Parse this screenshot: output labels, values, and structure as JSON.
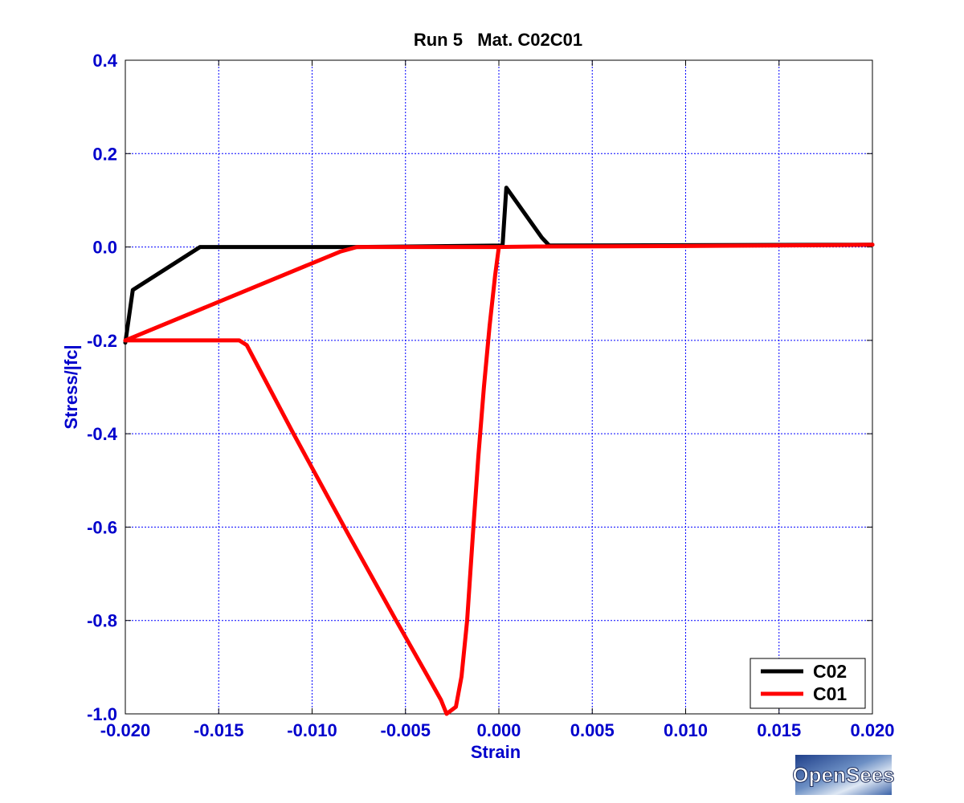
{
  "chart_data": {
    "type": "line",
    "title": "Run 5   Mat. C02C01",
    "xlabel": "Strain",
    "ylabel": "Stress/|fc|",
    "xlim": [
      -0.02,
      0.02
    ],
    "ylim": [
      -1.0,
      0.4
    ],
    "xticks": [
      -0.02,
      -0.015,
      -0.01,
      -0.005,
      0.0,
      0.005,
      0.01,
      0.015,
      0.02
    ],
    "yticks": [
      -1.0,
      -0.8,
      -0.6,
      -0.4,
      -0.2,
      0.0,
      0.2,
      0.4
    ],
    "xtick_labels": [
      "-0.020",
      "-0.015",
      "-0.010",
      "-0.005",
      "0.000",
      "0.005",
      "0.010",
      "0.015",
      "0.020"
    ],
    "ytick_labels": [
      "-1.0",
      "-0.8",
      "-0.6",
      "-0.4",
      "-0.2",
      "0.0",
      "0.2",
      "0.4"
    ],
    "grid": true,
    "legend_position": "bottom-right",
    "series": [
      {
        "name": "C02",
        "color": "#000000",
        "x": [
          -0.02,
          -0.0196,
          -0.016,
          -0.0076,
          0.0002,
          0.0004,
          0.0023,
          0.0027,
          0.02
        ],
        "y": [
          -0.205,
          -0.092,
          0.0,
          0.0,
          0.003,
          0.127,
          0.02,
          0.003,
          0.005
        ]
      },
      {
        "name": "C01",
        "color": "#ff0000",
        "x": [
          -0.02,
          -0.0139,
          -0.0135,
          -0.011,
          -0.008,
          -0.0055,
          -0.0038,
          -0.0031,
          -0.0028,
          -0.0023,
          -0.002,
          -0.0017,
          -0.0014,
          -0.0011,
          -0.0008,
          -0.0005,
          -0.0002,
          0.0,
          0.002,
          0.01,
          0.018,
          0.02
        ],
        "y": [
          -0.2,
          -0.2,
          -0.21,
          -0.4,
          -0.62,
          -0.8,
          -0.92,
          -0.97,
          -1.0,
          -0.985,
          -0.92,
          -0.8,
          -0.62,
          -0.45,
          -0.3,
          -0.17,
          -0.06,
          0.0,
          0.001,
          0.002,
          0.004,
          0.005
        ],
        "x2": [
          -0.02,
          -0.0085,
          -0.0076,
          0.0
        ],
        "y2": [
          -0.2,
          -0.01,
          0.0,
          0.0
        ]
      }
    ]
  },
  "logo": {
    "text": "OpenSees"
  }
}
